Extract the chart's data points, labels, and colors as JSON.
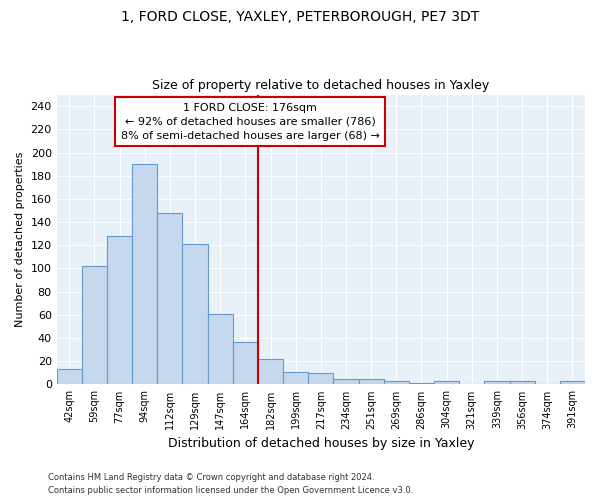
{
  "title": "1, FORD CLOSE, YAXLEY, PETERBOROUGH, PE7 3DT",
  "subtitle": "Size of property relative to detached houses in Yaxley",
  "xlabel": "Distribution of detached houses by size in Yaxley",
  "ylabel": "Number of detached properties",
  "bar_color": "#c5d8ed",
  "bar_edge_color": "#6699cc",
  "background_color": "#e8f0f8",
  "annotation_line1": "1 FORD CLOSE: 176sqm",
  "annotation_line2": "← 92% of detached houses are smaller (786)",
  "annotation_line3": "8% of semi-detached houses are larger (68) →",
  "vline_color": "#cc0000",
  "footer1": "Contains HM Land Registry data © Crown copyright and database right 2024.",
  "footer2": "Contains public sector information licensed under the Open Government Licence v3.0.",
  "categories": [
    "42sqm",
    "59sqm",
    "77sqm",
    "94sqm",
    "112sqm",
    "129sqm",
    "147sqm",
    "164sqm",
    "182sqm",
    "199sqm",
    "217sqm",
    "234sqm",
    "251sqm",
    "269sqm",
    "286sqm",
    "304sqm",
    "321sqm",
    "339sqm",
    "356sqm",
    "374sqm",
    "391sqm"
  ],
  "values": [
    13,
    102,
    128,
    190,
    148,
    121,
    61,
    37,
    22,
    11,
    10,
    5,
    5,
    3,
    1,
    3,
    0,
    3,
    3,
    0,
    3
  ],
  "ylim": [
    0,
    250
  ],
  "yticks": [
    0,
    20,
    40,
    60,
    80,
    100,
    120,
    140,
    160,
    180,
    200,
    220,
    240
  ]
}
